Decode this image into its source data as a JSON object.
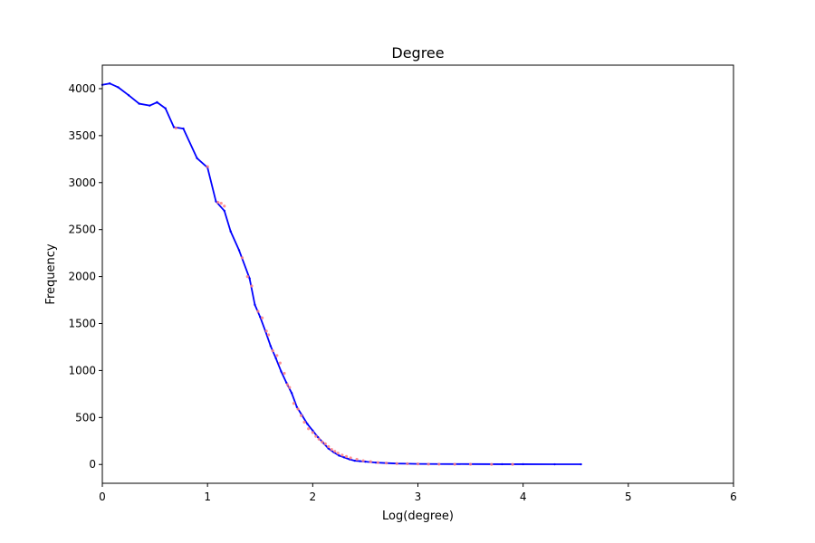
{
  "chart_data": {
    "type": "line",
    "title": "Degree",
    "xlabel": "Log(degree)",
    "ylabel": "Frequency",
    "xlim": [
      0,
      6
    ],
    "ylim": [
      -200,
      4250
    ],
    "xticks": [
      0,
      1,
      2,
      3,
      4,
      5,
      6
    ],
    "xtick_labels": [
      "0",
      "1",
      "2",
      "3",
      "4",
      "5",
      "6"
    ],
    "yticks": [
      0,
      500,
      1000,
      1500,
      2000,
      2500,
      3000,
      3500,
      4000
    ],
    "ytick_labels": [
      "0",
      "500",
      "1000",
      "1500",
      "2000",
      "2500",
      "3000",
      "3500",
      "4000"
    ],
    "grid": false,
    "legend": "none",
    "series": [
      {
        "kind": "line",
        "color": "#0000ff",
        "x": [
          0,
          0.07,
          0.15,
          0.25,
          0.35,
          0.45,
          0.52,
          0.6,
          0.68,
          0.77,
          0.9,
          1.0,
          1.08,
          1.16,
          1.22,
          1.3,
          1.4,
          1.45,
          1.5,
          1.55,
          1.6,
          1.65,
          1.7,
          1.75,
          1.8,
          1.85,
          1.9,
          1.95,
          2.0,
          2.05,
          2.1,
          2.15,
          2.2,
          2.25,
          2.3,
          2.35,
          2.4,
          2.45,
          2.5,
          2.6,
          2.7,
          2.8,
          2.9,
          3.0,
          3.2,
          3.5,
          3.8,
          4.0,
          4.3,
          4.55
        ],
        "y": [
          4040,
          4055,
          4015,
          3930,
          3840,
          3820,
          3855,
          3790,
          3590,
          3575,
          3260,
          3160,
          2800,
          2700,
          2480,
          2280,
          1980,
          1700,
          1570,
          1420,
          1260,
          1130,
          990,
          870,
          760,
          610,
          520,
          430,
          360,
          290,
          230,
          170,
          130,
          95,
          75,
          55,
          40,
          35,
          30,
          20,
          15,
          10,
          8,
          6,
          5,
          4,
          3,
          3,
          2,
          2
        ]
      },
      {
        "kind": "scatter",
        "color": "#ff8080",
        "x": [
          0.7,
          1.0,
          1.1,
          1.13,
          1.16,
          1.33,
          1.38,
          1.42,
          1.48,
          1.52,
          1.56,
          1.58,
          1.62,
          1.66,
          1.69,
          1.73,
          1.76,
          1.78,
          1.82,
          1.86,
          1.89,
          1.92,
          1.96,
          2.0,
          2.03,
          2.06,
          2.09,
          2.12,
          2.15,
          2.18,
          2.21,
          2.24,
          2.28,
          2.32,
          2.36,
          2.42,
          2.48,
          2.55,
          2.62,
          2.7,
          2.8,
          2.9,
          3.0,
          3.1,
          3.2,
          3.35,
          3.5,
          3.7,
          3.9
        ],
        "y": [
          3580,
          3170,
          2790,
          2780,
          2750,
          2200,
          2000,
          1900,
          1630,
          1560,
          1420,
          1380,
          1210,
          1160,
          1080,
          970,
          850,
          820,
          650,
          590,
          520,
          450,
          380,
          340,
          300,
          270,
          240,
          220,
          190,
          160,
          140,
          120,
          100,
          85,
          70,
          55,
          40,
          30,
          20,
          15,
          10,
          8,
          6,
          4,
          3,
          2,
          2,
          1,
          1
        ]
      }
    ]
  }
}
